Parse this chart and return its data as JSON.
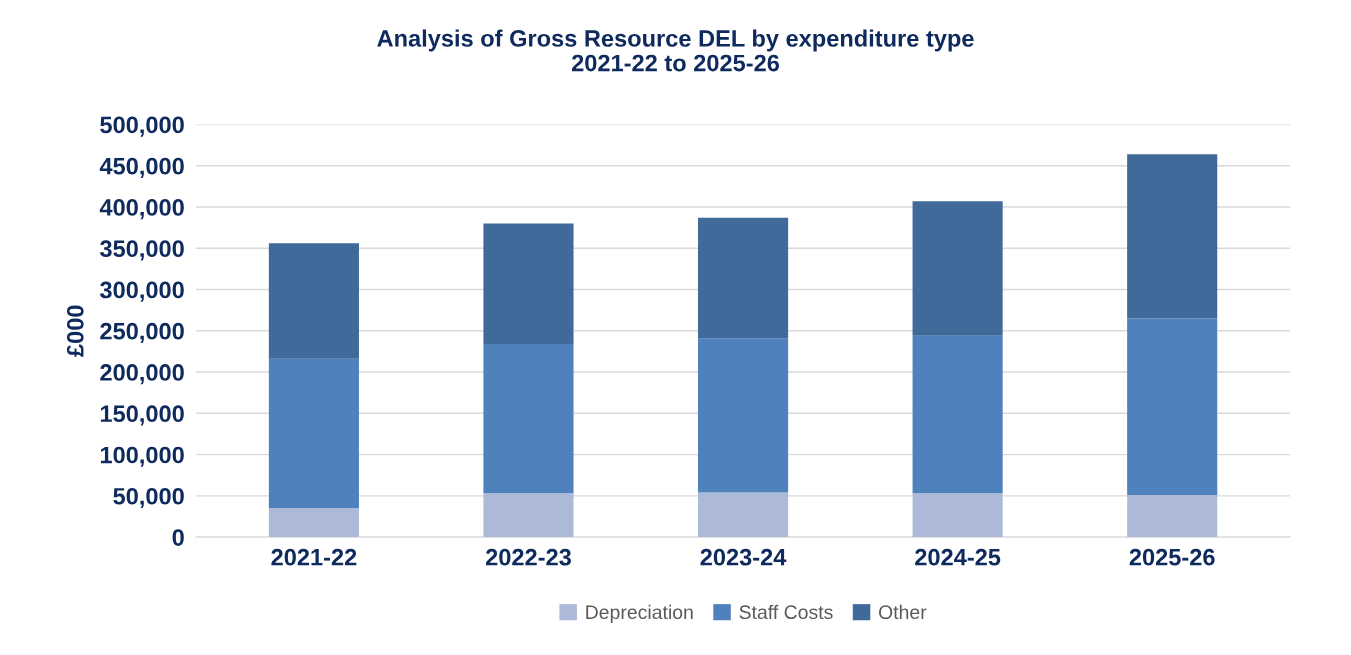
{
  "chart_data": {
    "type": "bar",
    "title": "Analysis of Gross Resource DEL by expenditure type\n2021-22 to 2025-26",
    "ylabel": "£000",
    "categories": [
      "2021-22",
      "2022-23",
      "2023-24",
      "2024-25",
      "2025-26"
    ],
    "stacked": true,
    "series": [
      {
        "name": "Depreciation",
        "color": "#adb9d8",
        "values": [
          35000,
          53000,
          54000,
          53000,
          51000
        ]
      },
      {
        "name": "Staff Costs",
        "color": "#4f81bd",
        "values": [
          181000,
          181000,
          187000,
          191000,
          214000
        ]
      },
      {
        "name": "Other",
        "color": "#3f6a9a",
        "values": [
          140000,
          146000,
          146000,
          163000,
          199000
        ]
      }
    ],
    "ylim": [
      0,
      500000
    ],
    "yticks": [
      {
        "value": 0,
        "label": "0"
      },
      {
        "value": 50000,
        "label": "50,000"
      },
      {
        "value": 100000,
        "label": "100,000"
      },
      {
        "value": 150000,
        "label": "150,000"
      },
      {
        "value": 200000,
        "label": "200,000"
      },
      {
        "value": 250000,
        "label": "250,000"
      },
      {
        "value": 300000,
        "label": "300,000"
      },
      {
        "value": 350000,
        "label": "350,000"
      },
      {
        "value": 400000,
        "label": "400,000"
      },
      {
        "value": 450000,
        "label": "450,000"
      },
      {
        "value": 500000,
        "label": "500,000"
      }
    ],
    "grid": "y",
    "legend": "bottom"
  }
}
